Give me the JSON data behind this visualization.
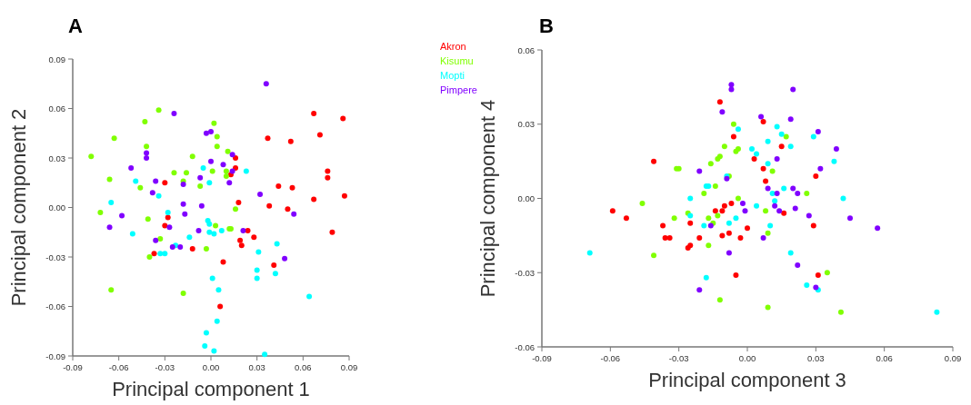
{
  "chart_data": [
    {
      "type": "scatter",
      "title": "A",
      "xlabel": "Principal component 1",
      "ylabel": "Principal component 2",
      "xlim": [
        -0.09,
        0.09
      ],
      "ylim": [
        -0.09,
        0.09
      ],
      "xticks": [
        -0.09,
        -0.06,
        -0.03,
        {
          "value": 0,
          "label": "0.00"
        },
        0.03,
        0.06,
        0.09
      ],
      "yticks": [
        -0.09,
        -0.06,
        -0.03,
        {
          "value": 0,
          "label": "0.00"
        },
        0.03,
        0.06,
        0.09
      ],
      "marker": "circle",
      "legend": "top right",
      "grid": false,
      "series": [
        {
          "name": "Akron",
          "color": "#ff0000",
          "x": [
            -0.03,
            -0.028,
            -0.03,
            -0.037,
            -0.012,
            0.067,
            0.086,
            0.037,
            0.052,
            0.071,
            0.016,
            0.016,
            0.013,
            0.076,
            0.076,
            0.044,
            0.053,
            0.038,
            0.05,
            0.067,
            0.087,
            0.018,
            0.024,
            0.028,
            0.019,
            0.02,
            0.079,
            0.041,
            0.008,
            0.006
          ],
          "values": [
            0.015,
            -0.006,
            -0.011,
            -0.028,
            -0.025,
            0.057,
            0.054,
            0.042,
            0.04,
            0.044,
            0.03,
            0.024,
            0.02,
            0.022,
            0.018,
            0.013,
            0.012,
            0.001,
            -0.001,
            0.005,
            0.007,
            0.003,
            -0.014,
            -0.018,
            -0.02,
            -0.023,
            -0.015,
            -0.035,
            -0.033,
            -0.06
          ]
        },
        {
          "name": "Kisumu",
          "color": "#80ff00",
          "x": [
            -0.078,
            -0.034,
            -0.043,
            -0.063,
            -0.042,
            -0.012,
            -0.024,
            -0.016,
            -0.018,
            -0.066,
            -0.046,
            -0.007,
            -0.072,
            -0.041,
            -0.033,
            -0.04,
            -0.065,
            -0.018,
            -0.003,
            0.002,
            0.004,
            0.004,
            0.011,
            0.001,
            0.01,
            0.01,
            0.016,
            0.003,
            0.012,
            0.013
          ],
          "values": [
            0.031,
            0.059,
            0.052,
            0.042,
            0.037,
            0.031,
            0.021,
            0.021,
            0.016,
            0.017,
            0.012,
            0.013,
            -0.003,
            -0.007,
            -0.019,
            -0.03,
            -0.05,
            -0.052,
            -0.025,
            0.051,
            0.043,
            0.037,
            0.034,
            0.022,
            0.022,
            0.019,
            -0.001,
            -0.011,
            -0.013,
            -0.013
          ]
        },
        {
          "name": "Mopti",
          "color": "#00ffff",
          "x": [
            -0.005,
            -0.049,
            -0.034,
            -0.065,
            -0.028,
            -0.051,
            -0.014,
            -0.023,
            -0.033,
            -0.03,
            -0.003,
            -0.004,
            -0.001,
            0.023,
            -0.002,
            -0.001,
            -0.001,
            0.002,
            0.007,
            0.043,
            0.031,
            0.03,
            0.03,
            0.042,
            0.064,
            0.001,
            0.005,
            0.004,
            0.002,
            0.035
          ],
          "values": [
            0.024,
            0.016,
            0.007,
            0.003,
            -0.003,
            -0.016,
            -0.018,
            -0.023,
            -0.028,
            -0.028,
            -0.076,
            -0.084,
            0.015,
            0.022,
            -0.008,
            -0.01,
            -0.015,
            -0.016,
            -0.014,
            -0.022,
            -0.027,
            -0.038,
            -0.043,
            -0.04,
            -0.054,
            -0.043,
            -0.05,
            -0.069,
            -0.087,
            -0.089
          ]
        },
        {
          "name": "Pimpere",
          "color": "#8000ff",
          "x": [
            -0.024,
            -0.003,
            -0.042,
            -0.042,
            -0.052,
            -0.036,
            -0.018,
            -0.007,
            -0.038,
            -0.018,
            -0.006,
            -0.058,
            -0.017,
            -0.066,
            -0.027,
            -0.008,
            -0.036,
            -0.025,
            -0.02,
            0.036,
            0.0,
            0.014,
            0.0,
            0.008,
            0.014,
            0.012,
            0.032,
            0.054,
            0.021,
            0.048
          ],
          "values": [
            0.057,
            0.045,
            0.033,
            0.03,
            0.024,
            0.016,
            0.014,
            0.018,
            0.009,
            0.002,
            0.001,
            -0.005,
            -0.004,
            -0.012,
            -0.012,
            -0.014,
            -0.02,
            -0.024,
            -0.024,
            0.075,
            0.046,
            0.032,
            0.028,
            0.026,
            0.022,
            0.015,
            0.008,
            -0.004,
            -0.014,
            -0.031
          ]
        }
      ]
    },
    {
      "type": "scatter",
      "title": "B",
      "xlabel": "Principal component 3",
      "ylabel": "Principal component 4",
      "xlim": [
        -0.09,
        0.09
      ],
      "ylim": [
        -0.06,
        0.06
      ],
      "xticks": [
        -0.09,
        -0.06,
        -0.03,
        {
          "value": 0,
          "label": "0.00"
        },
        0.03,
        0.06,
        0.09
      ],
      "yticks": [
        -0.06,
        -0.03,
        {
          "value": 0,
          "label": "0.00"
        },
        0.03,
        0.06
      ],
      "marker": "circle",
      "grid": false,
      "series": [
        {
          "color": "#ff0000",
          "x": [
            -0.012,
            -0.006,
            -0.041,
            -0.01,
            -0.007,
            -0.014,
            -0.011,
            -0.059,
            -0.053,
            -0.037,
            -0.025,
            -0.036,
            -0.034,
            -0.021,
            -0.011,
            -0.008,
            -0.003,
            -0.026,
            -0.025,
            -0.005,
            0.007,
            0.015,
            0.003,
            0.007,
            0.03,
            0.008,
            0.016,
            0.029,
            0.031,
            0.0
          ],
          "values": [
            0.039,
            0.025,
            0.015,
            -0.003,
            -0.002,
            -0.005,
            -0.005,
            -0.005,
            -0.008,
            -0.011,
            -0.01,
            -0.016,
            -0.016,
            -0.016,
            -0.015,
            -0.014,
            -0.016,
            -0.02,
            -0.019,
            -0.031,
            0.031,
            0.021,
            0.016,
            0.012,
            0.009,
            0.007,
            -0.006,
            -0.011,
            -0.031,
            -0.012
          ]
        },
        {
          "color": "#80ff00",
          "x": [
            -0.006,
            -0.01,
            -0.012,
            -0.013,
            -0.005,
            -0.004,
            -0.016,
            -0.031,
            -0.03,
            -0.008,
            -0.014,
            -0.019,
            -0.004,
            -0.046,
            -0.026,
            -0.032,
            -0.017,
            -0.013,
            -0.015,
            -0.017,
            -0.041,
            -0.012,
            0.017,
            0.011,
            0.026,
            0.008,
            0.009,
            0.035,
            0.009,
            0.041
          ],
          "values": [
            0.03,
            0.021,
            0.017,
            0.016,
            0.019,
            0.02,
            0.014,
            0.012,
            0.012,
            0.009,
            0.005,
            0.002,
            0.0,
            -0.002,
            -0.006,
            -0.008,
            -0.008,
            -0.007,
            -0.01,
            -0.019,
            -0.023,
            -0.041,
            0.025,
            0.011,
            0.002,
            -0.005,
            -0.014,
            -0.03,
            -0.044,
            -0.046
          ]
        },
        {
          "color": "#00ffff",
          "x": [
            -0.004,
            -0.009,
            -0.018,
            -0.017,
            -0.025,
            -0.025,
            -0.019,
            -0.008,
            -0.005,
            -0.069,
            -0.018,
            0.013,
            0.015,
            0.009,
            0.019,
            0.029,
            0.002,
            0.004,
            0.009,
            0.038,
            0.016,
            0.011,
            0.012,
            0.004,
            0.042,
            0.01,
            0.019,
            0.026,
            0.031,
            0.083
          ],
          "values": [
            0.028,
            0.009,
            0.005,
            0.005,
            0.0,
            -0.007,
            -0.011,
            -0.01,
            -0.008,
            -0.022,
            -0.032,
            0.029,
            0.026,
            0.023,
            0.021,
            0.025,
            0.02,
            0.018,
            0.014,
            0.015,
            0.004,
            0.002,
            -0.001,
            -0.003,
            0.0,
            -0.011,
            -0.022,
            -0.035,
            -0.037,
            -0.046
          ]
        },
        {
          "color": "#8000ff",
          "x": [
            -0.007,
            -0.007,
            -0.011,
            -0.021,
            -0.009,
            -0.016,
            -0.008,
            -0.021,
            0.02,
            0.006,
            0.019,
            0.031,
            0.039,
            0.013,
            0.032,
            0.009,
            0.013,
            0.02,
            0.022,
            0.012,
            0.014,
            0.021,
            0.027,
            0.045,
            0.057,
            0.007,
            0.022,
            0.03,
            -0.002,
            -0.001
          ],
          "values": [
            0.046,
            0.044,
            0.035,
            0.011,
            0.008,
            -0.011,
            -0.022,
            -0.037,
            0.044,
            0.033,
            0.032,
            0.027,
            0.02,
            0.016,
            0.012,
            0.004,
            0.002,
            0.004,
            0.002,
            -0.003,
            -0.005,
            -0.004,
            -0.007,
            -0.008,
            -0.012,
            -0.016,
            -0.027,
            -0.036,
            -0.002,
            -0.005
          ]
        }
      ]
    }
  ]
}
